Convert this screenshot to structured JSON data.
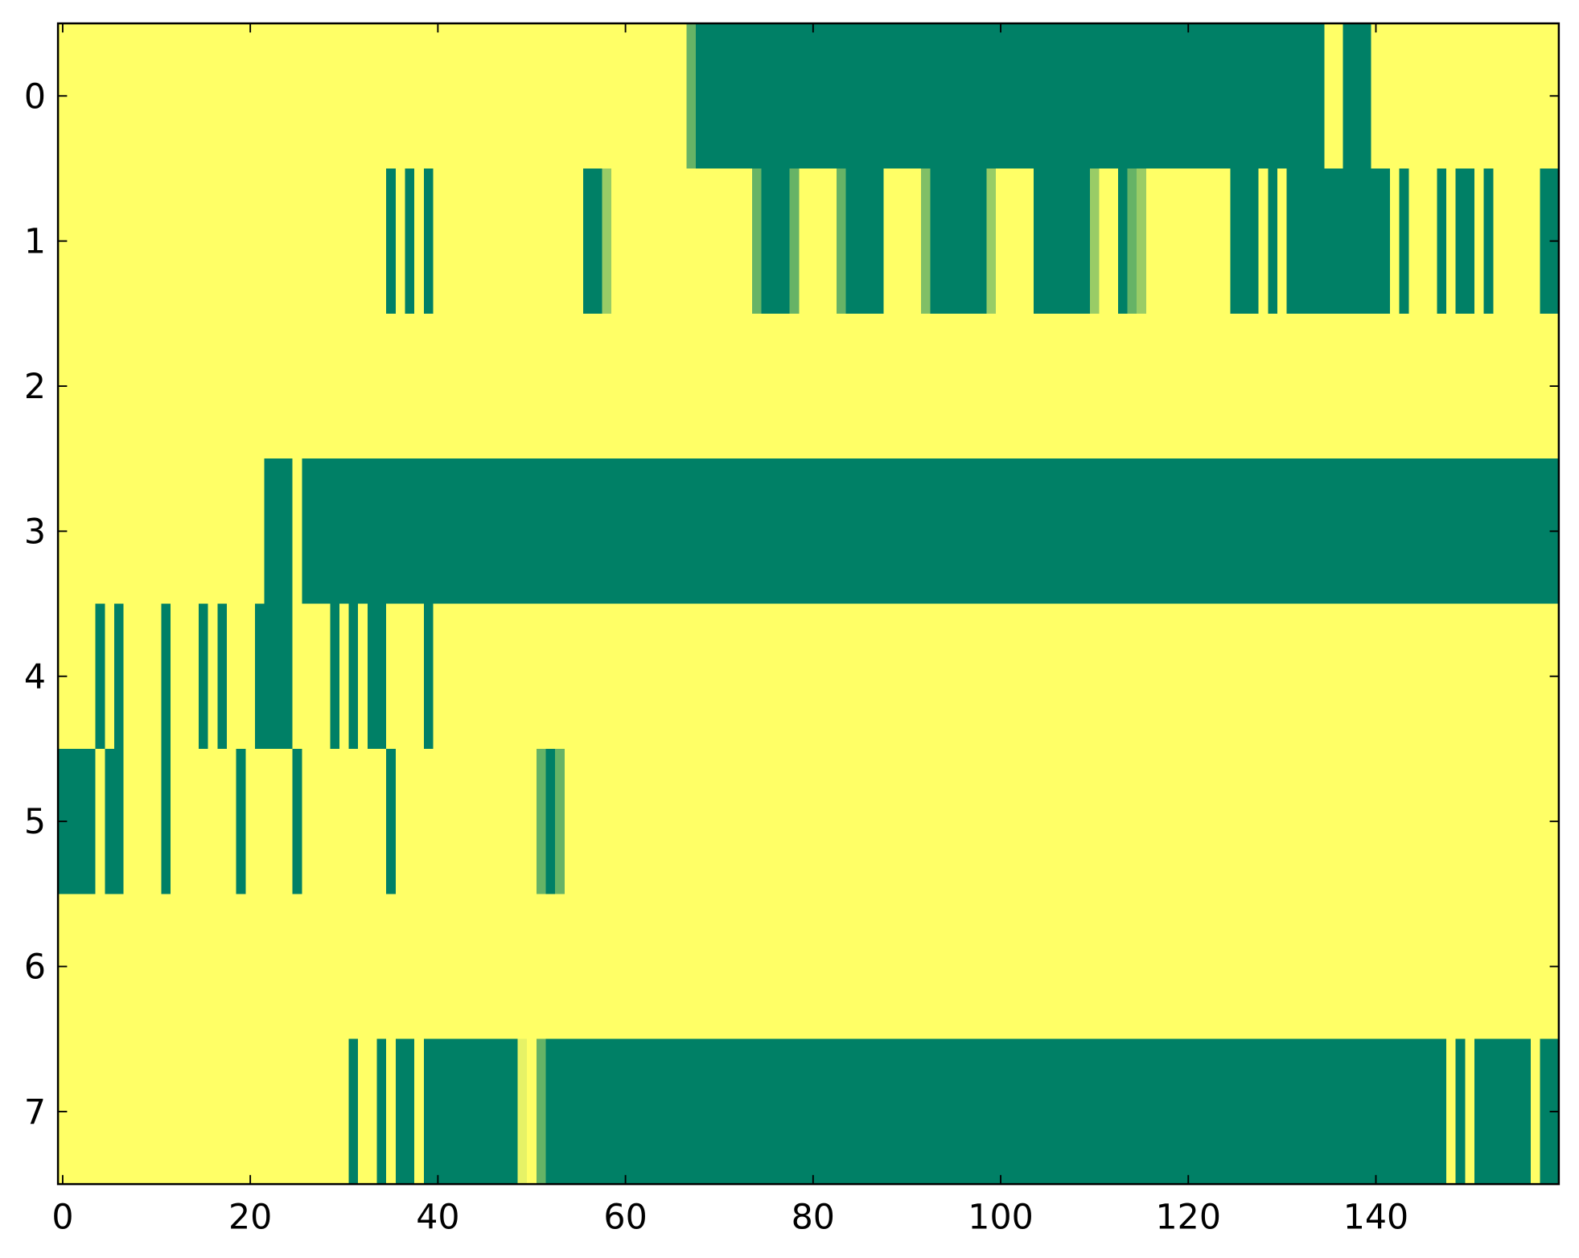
{
  "chart_data": {
    "type": "heatmap",
    "colormap": "summer",
    "xlim": [
      -0.5,
      159.5
    ],
    "ylim": [
      7.5,
      -0.5
    ],
    "xticks": [
      0,
      20,
      40,
      60,
      80,
      100,
      120,
      140
    ],
    "yticks": [
      0,
      1,
      2,
      3,
      4,
      5,
      6,
      7
    ],
    "z": [
      [
        1,
        1,
        1,
        1,
        1,
        1,
        1,
        1,
        1,
        1,
        1,
        1,
        1,
        1,
        1,
        1,
        1,
        1,
        1,
        1,
        1,
        1,
        1,
        1,
        1,
        1,
        1,
        1,
        1,
        1,
        1,
        1,
        1,
        1,
        1,
        1,
        1,
        1,
        1,
        1,
        1,
        1,
        1,
        1,
        1,
        1,
        1,
        1,
        1,
        1,
        1,
        1,
        1,
        1,
        1,
        1,
        1,
        1,
        1,
        1,
        1,
        1,
        1,
        1,
        1,
        1,
        1,
        0.4,
        0,
        0,
        0,
        0,
        0,
        0,
        0,
        0,
        0,
        0,
        0,
        0,
        0,
        0,
        0,
        0,
        0,
        0,
        0,
        0,
        0,
        0,
        0,
        0,
        0,
        0,
        0,
        0,
        0,
        0,
        0,
        0,
        0,
        0,
        0,
        0,
        0,
        0,
        0,
        0,
        0,
        0,
        0,
        0,
        0,
        0,
        0,
        0,
        0,
        0,
        0,
        0,
        0,
        0,
        0,
        0,
        0,
        0,
        0,
        0,
        0,
        0,
        0,
        0,
        0,
        0,
        0,
        1,
        1,
        0,
        0,
        0,
        1,
        1,
        1,
        1,
        1,
        1,
        1,
        1,
        1,
        1,
        1,
        1,
        1,
        1,
        1,
        1,
        1,
        1,
        1,
        1
      ],
      [
        1,
        1,
        1,
        1,
        1,
        1,
        1,
        1,
        1,
        1,
        1,
        1,
        1,
        1,
        1,
        1,
        1,
        1,
        1,
        1,
        1,
        1,
        1,
        1,
        1,
        1,
        1,
        1,
        1,
        1,
        1,
        1,
        1,
        1,
        1,
        0,
        1,
        0,
        1,
        0,
        1,
        1,
        1,
        1,
        1,
        1,
        1,
        1,
        1,
        1,
        1,
        1,
        1,
        1,
        1,
        1,
        0,
        0,
        0.6,
        1,
        1,
        1,
        1,
        1,
        1,
        1,
        1,
        1,
        1,
        1,
        1,
        1,
        1,
        1,
        0.4,
        0,
        0,
        0,
        0.4,
        1,
        1,
        1,
        1,
        0.4,
        0,
        0,
        0,
        0,
        1,
        1,
        1,
        1,
        0.5,
        0,
        0,
        0,
        0,
        0,
        0,
        0.6,
        1,
        1,
        1,
        1,
        0,
        0,
        0,
        0,
        0,
        0,
        0.6,
        1,
        1,
        0,
        0.4,
        0.6,
        1,
        1,
        1,
        1,
        1,
        1,
        1,
        1,
        1,
        0,
        0,
        0,
        1,
        0,
        1,
        0,
        0,
        0,
        0,
        0,
        0,
        0,
        0,
        0,
        0,
        0,
        1,
        0,
        1,
        1,
        1,
        0,
        1,
        0,
        0,
        1,
        0,
        1,
        1,
        1,
        1,
        1,
        0,
        0
      ],
      [
        1,
        1,
        1,
        1,
        1,
        1,
        1,
        1,
        1,
        1,
        1,
        1,
        1,
        1,
        1,
        1,
        1,
        1,
        1,
        1,
        1,
        1,
        1,
        1,
        1,
        1,
        1,
        1,
        1,
        1,
        1,
        1,
        1,
        1,
        1,
        1,
        1,
        1,
        1,
        1,
        1,
        1,
        1,
        1,
        1,
        1,
        1,
        1,
        1,
        1,
        1,
        1,
        1,
        1,
        1,
        1,
        1,
        1,
        1,
        1,
        1,
        1,
        1,
        1,
        1,
        1,
        1,
        1,
        1,
        1,
        1,
        1,
        1,
        1,
        1,
        1,
        1,
        1,
        1,
        1,
        1,
        1,
        1,
        1,
        1,
        1,
        1,
        1,
        1,
        1,
        1,
        1,
        1,
        1,
        1,
        1,
        1,
        1,
        1,
        1,
        1,
        1,
        1,
        1,
        1,
        1,
        1,
        1,
        1,
        1,
        1,
        1,
        1,
        1,
        1,
        1,
        1,
        1,
        1,
        1,
        1,
        1,
        1,
        1,
        1,
        1,
        1,
        1,
        1,
        1,
        1,
        1,
        1,
        1,
        1,
        1,
        1,
        1,
        1,
        1,
        1,
        1,
        1,
        1,
        1,
        1,
        1,
        1,
        1,
        1,
        1,
        1,
        1,
        1,
        1,
        1,
        1,
        1,
        1,
        1
      ],
      [
        1,
        1,
        1,
        1,
        1,
        1,
        1,
        1,
        1,
        1,
        1,
        1,
        1,
        1,
        1,
        1,
        1,
        1,
        1,
        1,
        1,
        1,
        0,
        0,
        0,
        1,
        0,
        0,
        0,
        0,
        0,
        0,
        0,
        0,
        0,
        0,
        0,
        0,
        0,
        0,
        0,
        0,
        0,
        0,
        0,
        0,
        0,
        0,
        0,
        0,
        0,
        0,
        0,
        0,
        0,
        0,
        0,
        0,
        0,
        0,
        0,
        0,
        0,
        0,
        0,
        0,
        0,
        0,
        0,
        0,
        0,
        0,
        0,
        0,
        0,
        0,
        0,
        0,
        0,
        0,
        0,
        0,
        0,
        0,
        0,
        0,
        0,
        0,
        0,
        0,
        0,
        0,
        0,
        0,
        0,
        0,
        0,
        0,
        0,
        0,
        0,
        0,
        0,
        0,
        0,
        0,
        0,
        0,
        0,
        0,
        0,
        0,
        0,
        0,
        0,
        0,
        0,
        0,
        0,
        0,
        0,
        0,
        0,
        0,
        0,
        0,
        0,
        0,
        0,
        0,
        0,
        0,
        0,
        0,
        0,
        0,
        0,
        0,
        0,
        0,
        0,
        0,
        0,
        0,
        0,
        0,
        0,
        0,
        0,
        0,
        0,
        0,
        0,
        0,
        0,
        0,
        0,
        0,
        0,
        0
      ],
      [
        1,
        1,
        1,
        1,
        0,
        1,
        0,
        1,
        1,
        1,
        1,
        0,
        1,
        1,
        1,
        0,
        1,
        0,
        1,
        1,
        1,
        0,
        0,
        0,
        0,
        1,
        1,
        1,
        1,
        0,
        1,
        0,
        1,
        0,
        0,
        1,
        1,
        1,
        1,
        0,
        1,
        1,
        1,
        1,
        1,
        1,
        1,
        1,
        1,
        1,
        1,
        1,
        1,
        1,
        1,
        1,
        1,
        1,
        1,
        1,
        1,
        1,
        1,
        1,
        1,
        1,
        1,
        1,
        1,
        1,
        1,
        1,
        1,
        1,
        1,
        1,
        1,
        1,
        1,
        1,
        1,
        1,
        1,
        1,
        1,
        1,
        1,
        1,
        1,
        1,
        1,
        1,
        1,
        1,
        1,
        1,
        1,
        1,
        1,
        1,
        1,
        1,
        1,
        1,
        1,
        1,
        1,
        1,
        1,
        1,
        1,
        1,
        1,
        1,
        1,
        1,
        1,
        1,
        1,
        1,
        1,
        1,
        1,
        1,
        1,
        1,
        1,
        1,
        1,
        1,
        1,
        1,
        1,
        1,
        1,
        1,
        1,
        1,
        1,
        1,
        1,
        1,
        1,
        1,
        1,
        1,
        1,
        1,
        1,
        1,
        1,
        1,
        1,
        1,
        1,
        1,
        1,
        1,
        1,
        1
      ],
      [
        0,
        0,
        0,
        0,
        1,
        0,
        0,
        1,
        1,
        1,
        1,
        0,
        1,
        1,
        1,
        1,
        1,
        1,
        1,
        0,
        1,
        1,
        1,
        1,
        1,
        0,
        1,
        1,
        1,
        1,
        1,
        1,
        1,
        1,
        1,
        0,
        1,
        1,
        1,
        1,
        1,
        1,
        1,
        1,
        1,
        1,
        1,
        1,
        1,
        1,
        1,
        0.4,
        0,
        0.4,
        1,
        1,
        1,
        1,
        1,
        1,
        1,
        1,
        1,
        1,
        1,
        1,
        1,
        1,
        1,
        1,
        1,
        1,
        1,
        1,
        1,
        1,
        1,
        1,
        1,
        1,
        1,
        1,
        1,
        1,
        1,
        1,
        1,
        1,
        1,
        1,
        1,
        1,
        1,
        1,
        1,
        1,
        1,
        1,
        1,
        1,
        1,
        1,
        1,
        1,
        1,
        1,
        1,
        1,
        1,
        1,
        1,
        1,
        1,
        1,
        1,
        1,
        1,
        1,
        1,
        1,
        1,
        1,
        1,
        1,
        1,
        1,
        1,
        1,
        1,
        1,
        1,
        1,
        1,
        1,
        1,
        1,
        1,
        1,
        1,
        1,
        1,
        1,
        1,
        1,
        1,
        1,
        1,
        1,
        1,
        1,
        1,
        1,
        1,
        1,
        1,
        1,
        1,
        1,
        1,
        1
      ],
      [
        1,
        1,
        1,
        1,
        1,
        1,
        1,
        1,
        1,
        1,
        1,
        1,
        1,
        1,
        1,
        1,
        1,
        1,
        1,
        1,
        1,
        1,
        1,
        1,
        1,
        1,
        1,
        1,
        1,
        1,
        1,
        1,
        1,
        1,
        1,
        1,
        1,
        1,
        1,
        1,
        1,
        1,
        1,
        1,
        1,
        1,
        1,
        1,
        1,
        1,
        1,
        1,
        1,
        1,
        1,
        1,
        1,
        1,
        1,
        1,
        1,
        1,
        1,
        1,
        1,
        1,
        1,
        1,
        1,
        1,
        1,
        1,
        1,
        1,
        1,
        1,
        1,
        1,
        1,
        1,
        1,
        1,
        1,
        1,
        1,
        1,
        1,
        1,
        1,
        1,
        1,
        1,
        1,
        1,
        1,
        1,
        1,
        1,
        1,
        1,
        1,
        1,
        1,
        1,
        1,
        1,
        1,
        1,
        1,
        1,
        1,
        1,
        1,
        1,
        1,
        1,
        1,
        1,
        1,
        1,
        1,
        1,
        1,
        1,
        1,
        1,
        1,
        1,
        1,
        1,
        1,
        1,
        1,
        1,
        1,
        1,
        1,
        1,
        1,
        1,
        1,
        1,
        1,
        1,
        1,
        1,
        1,
        1,
        1,
        1,
        1,
        1,
        1,
        1,
        1,
        1,
        1,
        1,
        1,
        1
      ],
      [
        1,
        1,
        1,
        1,
        1,
        1,
        1,
        1,
        1,
        1,
        1,
        1,
        1,
        1,
        1,
        1,
        1,
        1,
        1,
        1,
        1,
        1,
        1,
        1,
        1,
        1,
        1,
        1,
        1,
        1,
        1,
        0,
        1,
        1,
        0,
        1,
        0,
        0,
        1,
        0,
        0,
        0,
        0,
        0,
        0,
        0,
        0,
        0,
        0,
        0.9,
        1,
        0.4,
        0,
        0,
        0,
        0,
        0,
        0,
        0,
        0,
        0,
        0,
        0,
        0,
        0,
        0,
        0,
        0,
        0,
        0,
        0,
        0,
        0,
        0,
        0,
        0,
        0,
        0,
        0,
        0,
        0,
        0,
        0,
        0,
        0,
        0,
        0,
        0,
        0,
        0,
        0,
        0,
        0,
        0,
        0,
        0,
        0,
        0,
        0,
        0,
        0,
        0,
        0,
        0,
        0,
        0,
        0,
        0,
        0,
        0,
        0,
        0,
        0,
        0,
        0,
        0,
        0,
        0,
        0,
        0,
        0,
        0,
        0,
        0,
        0,
        0,
        0,
        0,
        0,
        0,
        0,
        0,
        0,
        0,
        0,
        0,
        0,
        0,
        0,
        0,
        0,
        0,
        0,
        0,
        0,
        0,
        0,
        0,
        1,
        0,
        1,
        0,
        0,
        0,
        0,
        0,
        0,
        1,
        0,
        0
      ]
    ]
  }
}
